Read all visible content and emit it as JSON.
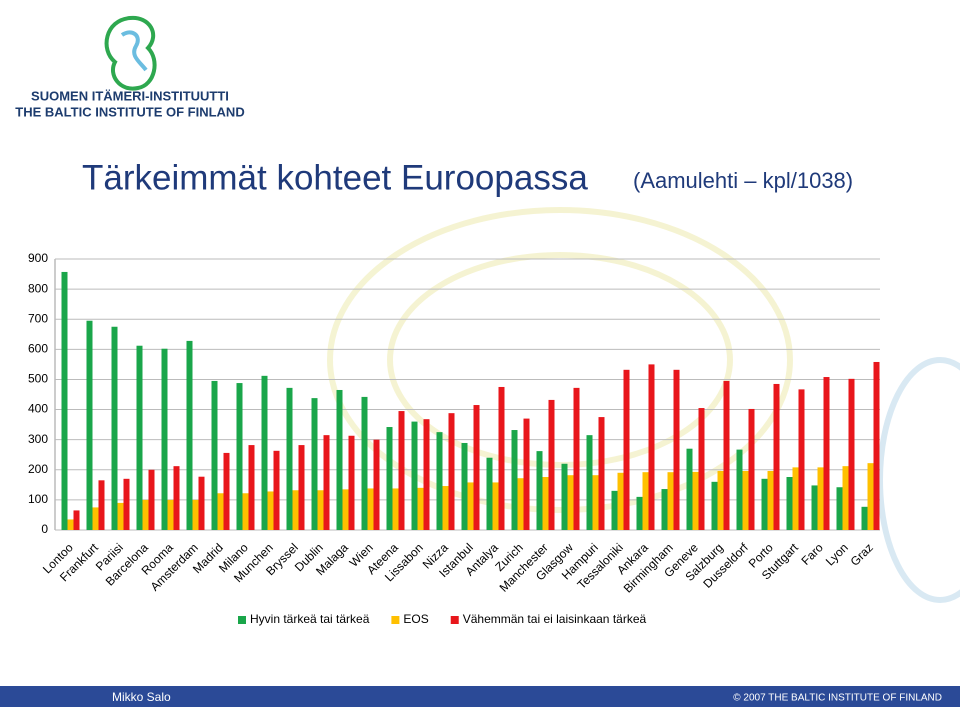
{
  "header": {
    "org_name": "SUOMEN ITÄMERI-INSTITUUTTI",
    "org_name_en": "THE BALTIC INSTITUTE OF FINLAND"
  },
  "chart_data": {
    "type": "bar",
    "title": "Tärkeimmät kohteet Euroopassa",
    "subtitle": "(Aamulehti – kpl/1038)",
    "categories": [
      "Lontoo",
      "Frankfurt",
      "Pariisi",
      "Barcelona",
      "Rooma",
      "Amsterdam",
      "Madrid",
      "Milano",
      "Munchen",
      "Bryssel",
      "Dublin",
      "Malaga",
      "Wien",
      "Ateena",
      "Lissabon",
      "Nizza",
      "Istanbul",
      "Antalya",
      "Zurich",
      "Manchester",
      "Glasgow",
      "Hampuri",
      "Tessaloniki",
      "Ankara",
      "Birmingham",
      "Geneve",
      "Salzburg",
      "Dusseldorf",
      "Porto",
      "Stuttgart",
      "Faro",
      "Lyon",
      "Graz"
    ],
    "series": [
      {
        "name": "Hyvin tärkeä tai tärkeä",
        "color": "#1aa64a",
        "values": [
          857,
          695,
          675,
          612,
          602,
          628,
          495,
          488,
          512,
          472,
          438,
          465,
          442,
          342,
          360,
          325,
          289,
          240,
          332,
          262,
          220,
          315,
          130,
          110,
          136,
          270,
          160,
          267,
          170,
          176,
          148,
          142,
          77
        ]
      },
      {
        "name": "EOS",
        "color": "#ffc000",
        "values": [
          35,
          75,
          90,
          100,
          100,
          100,
          122,
          122,
          128,
          132,
          132,
          135,
          138,
          138,
          140,
          146,
          158,
          158,
          172,
          176,
          182,
          182,
          190,
          192,
          192,
          193,
          196,
          196,
          196,
          208,
          208,
          212,
          222
        ]
      },
      {
        "name": "Vähemmän tai ei laisinkaan tärkeä",
        "color": "#e8161b",
        "values": [
          65,
          165,
          170,
          200,
          212,
          177,
          256,
          282,
          263,
          282,
          315,
          313,
          300,
          395,
          368,
          388,
          415,
          475,
          370,
          432,
          472,
          375,
          532,
          550,
          532,
          405,
          495,
          402,
          485,
          467,
          508,
          502,
          558
        ]
      }
    ],
    "ylim": [
      0,
      900
    ],
    "yticks": [
      0,
      100,
      200,
      300,
      400,
      500,
      600,
      700,
      800,
      900
    ],
    "grid": true,
    "legend": "bottom"
  },
  "footer": {
    "author": "Mikko Salo",
    "copyright": "© 2007 THE BALTIC INSTITUTE OF FINLAND"
  }
}
